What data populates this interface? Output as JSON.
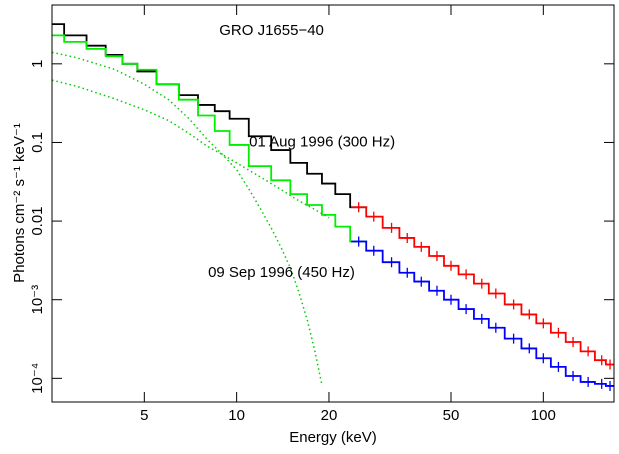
{
  "chart_data": {
    "type": "spectrum",
    "xlabel": "Energy (keV)",
    "ylabel": "Photons cm⁻² s⁻¹ keV⁻¹",
    "xscale": "log",
    "yscale": "log",
    "xlim": [
      2.5,
      170
    ],
    "ylim": [
      5e-05,
      5.6
    ],
    "xticks": [
      5,
      10,
      20,
      50,
      100
    ],
    "yticks": [
      1,
      0.1,
      0.01,
      {
        "value": 0.001,
        "label": "10⁻³"
      },
      {
        "value": 0.0001,
        "label": "10⁻⁴"
      }
    ],
    "annotations": [
      {
        "text": "GRO J1655−40",
        "x": 13,
        "y": 2.6
      },
      {
        "text": "01 Aug 1996 (300 Hz)",
        "x": 19,
        "y": 0.1
      },
      {
        "text": "09 Sep 1996 (450 Hz)",
        "x": 14,
        "y": 0.0022
      }
    ],
    "series": [
      {
        "color": "#000000",
        "style": "step",
        "x": [
          2.5,
          3,
          3.5,
          4,
          4.5,
          5,
          6,
          7,
          8,
          9,
          10,
          12,
          14,
          16,
          18,
          20,
          22,
          25
        ],
        "values": [
          3.2,
          2.3,
          1.7,
          1.3,
          1.0,
          0.8,
          0.55,
          0.4,
          0.3,
          0.25,
          0.2,
          0.12,
          0.08,
          0.055,
          0.04,
          0.03,
          0.022,
          0.015
        ]
      },
      {
        "color": "#ff0000",
        "style": "step-cross",
        "x": [
          25,
          28,
          32,
          36,
          40,
          45,
          50,
          56,
          63,
          70,
          80,
          90,
          100,
          112,
          125,
          140,
          155,
          165
        ],
        "values": [
          0.015,
          0.0114,
          0.0082,
          0.0061,
          0.0047,
          0.0036,
          0.0027,
          0.0021,
          0.0016,
          0.0012,
          0.00087,
          0.00065,
          0.0005,
          0.00038,
          0.00029,
          0.00022,
          0.00017,
          0.00015
        ]
      },
      {
        "color": "#00ee00",
        "style": "step",
        "x": [
          2.5,
          3,
          3.5,
          4,
          4.5,
          5,
          6,
          7,
          8,
          9,
          10,
          12,
          14,
          16,
          18,
          20,
          22,
          25
        ],
        "values": [
          2.3,
          1.9,
          1.55,
          1.25,
          1.0,
          0.84,
          0.55,
          0.35,
          0.22,
          0.14,
          0.093,
          0.05,
          0.033,
          0.022,
          0.016,
          0.012,
          0.0085,
          0.0055
        ]
      },
      {
        "color": "#0000ff",
        "style": "step-cross",
        "x": [
          25,
          28,
          32,
          36,
          40,
          45,
          50,
          56,
          63,
          70,
          80,
          90,
          100,
          112,
          125,
          140,
          155,
          165
        ],
        "values": [
          0.0055,
          0.0042,
          0.003,
          0.0022,
          0.0017,
          0.0013,
          0.001,
          0.00076,
          0.00057,
          0.00044,
          0.00032,
          0.00024,
          0.00018,
          0.00014,
          0.000107,
          9e-05,
          8.5e-05,
          8e-05
        ]
      },
      {
        "color": "#00cc00",
        "style": "dotted",
        "x": [
          2.5,
          3,
          4,
          5,
          6,
          7,
          8,
          9,
          10,
          11,
          12,
          13,
          14,
          15,
          16,
          17,
          18,
          19
        ],
        "values": [
          1.4,
          1.2,
          0.85,
          0.55,
          0.35,
          0.2,
          0.11,
          0.07,
          0.045,
          0.025,
          0.014,
          0.008,
          0.0045,
          0.0025,
          0.0012,
          0.00055,
          0.00022,
          8e-05
        ]
      },
      {
        "color": "#00cc00",
        "style": "dotted",
        "x": [
          2.5,
          3,
          4,
          5,
          6,
          7,
          8,
          9,
          10,
          12,
          14,
          16,
          18,
          20
        ],
        "values": [
          0.62,
          0.52,
          0.36,
          0.26,
          0.19,
          0.13,
          0.09,
          0.07,
          0.055,
          0.036,
          0.025,
          0.018,
          0.014,
          0.011
        ]
      }
    ]
  }
}
